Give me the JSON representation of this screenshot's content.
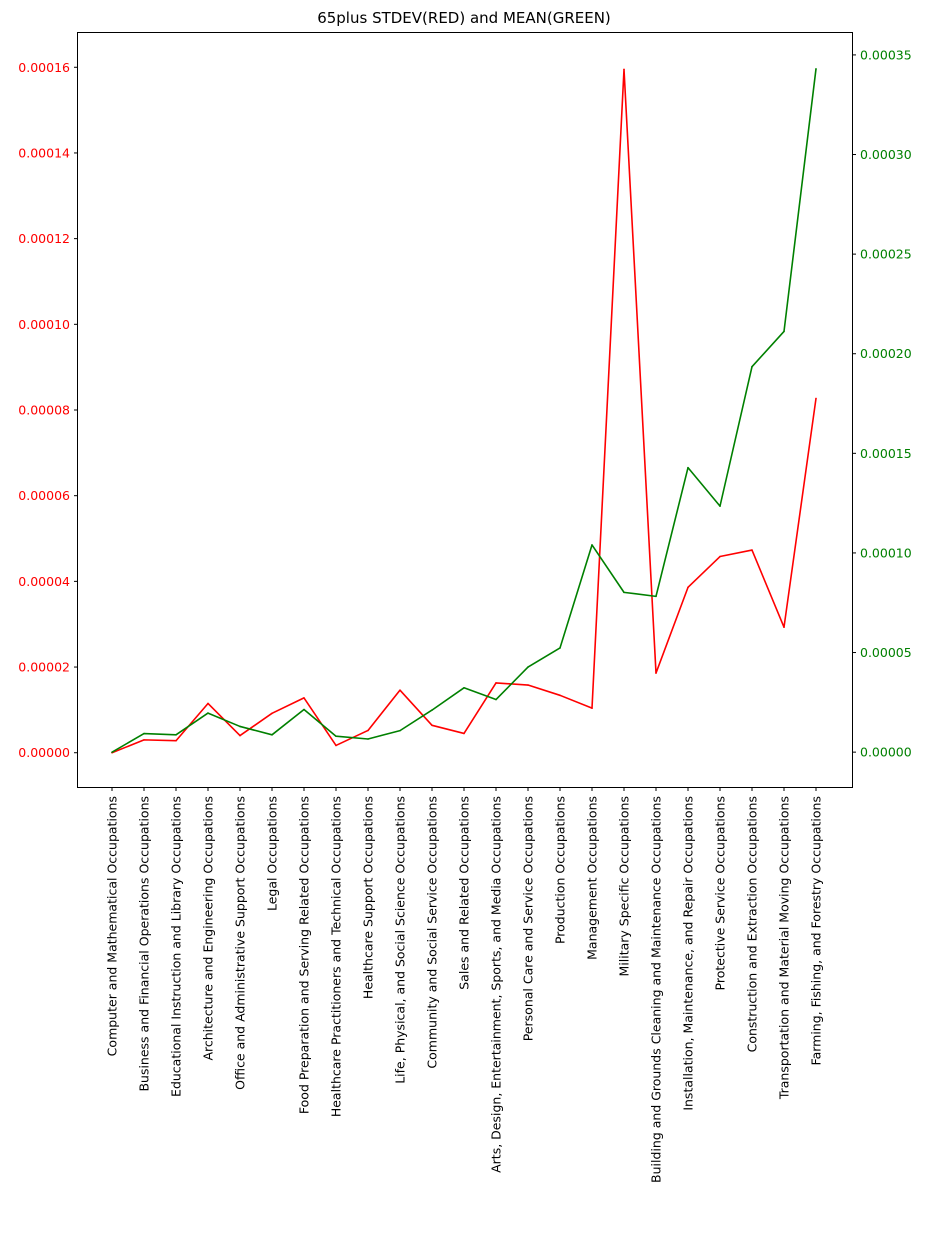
{
  "chart_data": {
    "type": "line",
    "title": "65plus STDEV(RED) and MEAN(GREEN)",
    "xlabel": "",
    "categories": [
      "Computer and Mathematical Occupations",
      "Business and Financial Operations Occupations",
      "Educational Instruction and Library Occupations",
      "Architecture and Engineering Occupations",
      "Office and Administrative Support Occupations",
      "Legal Occupations",
      "Food Preparation and Serving Related Occupations",
      "Healthcare Practitioners and Technical Occupations",
      "Healthcare Support Occupations",
      "Life, Physical, and Social Science Occupations",
      "Community and Social Service Occupations",
      "Sales and Related Occupations",
      "Arts, Design, Entertainment, Sports, and Media Occupations",
      "Personal Care and Service Occupations",
      "Production Occupations",
      "Management Occupations",
      "Military Specific Occupations",
      "Building and Grounds Cleaning and Maintenance Occupations",
      "Installation, Maintenance, and Repair Occupations",
      "Protective Service Occupations",
      "Construction and Extraction Occupations",
      "Transportation and Material Moving Occupations",
      "Farming, Fishing, and Forestry Occupations"
    ],
    "left_axis": {
      "color": "#ff0000",
      "ylim": [
        -8e-06,
        0.000168
      ],
      "ticks": [
        "0.00000",
        "0.00002",
        "0.00004",
        "0.00006",
        "0.00008",
        "0.00010",
        "0.00012",
        "0.00014",
        "0.00016"
      ]
    },
    "right_axis": {
      "color": "#008000",
      "ylim": [
        -1.75e-05,
        0.000361
      ],
      "ticks": [
        "0.00000",
        "0.00005",
        "0.00010",
        "0.00015",
        "0.00020",
        "0.00025",
        "0.00030",
        "0.00035"
      ]
    },
    "series": [
      {
        "axis": "left",
        "color": "#ff0000",
        "values": [
          0.0,
          3e-06,
          2.8e-06,
          1.15e-05,
          4e-06,
          9.2e-06,
          1.28e-05,
          1.7e-06,
          5.2e-06,
          1.46e-05,
          6.4e-06,
          4.5e-06,
          1.63e-05,
          1.58e-05,
          1.34e-05,
          1.04e-05,
          0.0001595,
          1.86e-05,
          3.86e-05,
          4.58e-05,
          4.73e-05,
          2.93e-05,
          8.27e-05
        ]
      },
      {
        "axis": "right",
        "color": "#008000",
        "values": [
          0.0,
          9.3e-06,
          8.7e-06,
          1.96e-05,
          1.29e-05,
          8.7e-06,
          2.14e-05,
          8e-06,
          6.6e-06,
          1.08e-05,
          2.11e-05,
          3.23e-05,
          2.64e-05,
          4.27e-05,
          5.23e-05,
          0.000104,
          8.02e-05,
          7.82e-05,
          0.0001428,
          0.0001235,
          0.0001935,
          0.0002112,
          0.000343
        ]
      }
    ],
    "grid": false,
    "legend": "none"
  }
}
